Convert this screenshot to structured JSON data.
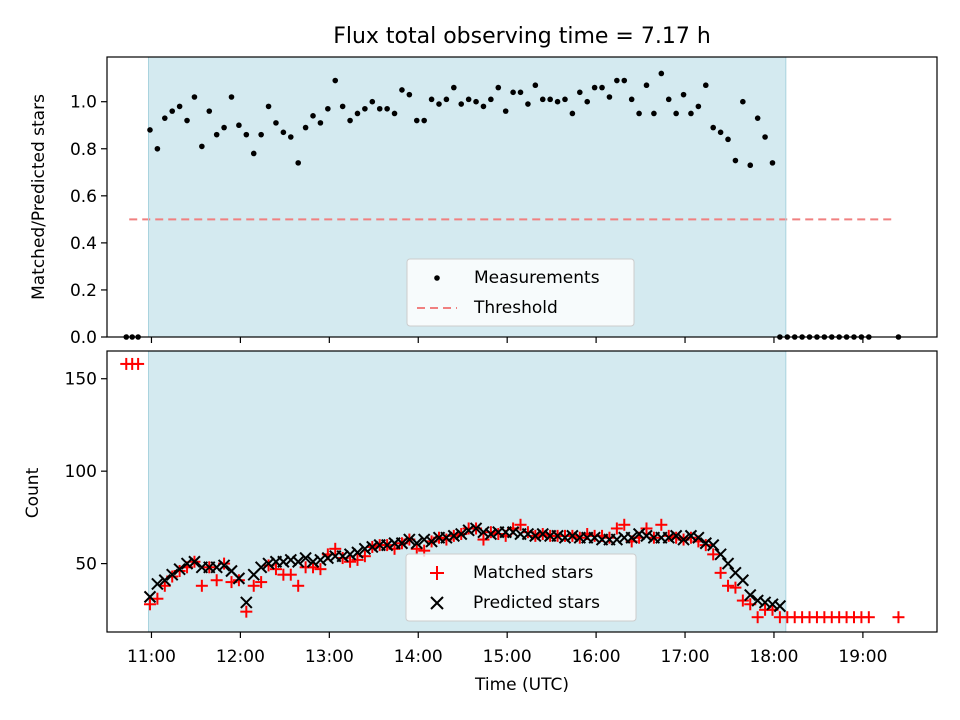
{
  "title": "Flux total observing time = 7.17 h",
  "xlabel": "Time (UTC)",
  "x_ticks": [
    "11:00",
    "12:00",
    "13:00",
    "14:00",
    "15:00",
    "16:00",
    "17:00",
    "18:00",
    "19:00"
  ],
  "colors": {
    "shade": "#d4eaf0",
    "matched": "#ff0000",
    "predicted": "#000000",
    "threshold": "#f08080"
  },
  "chart_data": [
    {
      "type": "scatter",
      "ylabel": "Matched/Predicted stars",
      "xlim": [
        "10:30",
        "19:50"
      ],
      "ylim": [
        0,
        1.19
      ],
      "y_ticks": [
        "0.0",
        "0.2",
        "0.4",
        "0.6",
        "0.8",
        "1.0"
      ],
      "shaded_span": [
        "10:58",
        "18:08"
      ],
      "legend": {
        "placement": "lower-center",
        "entries": [
          "Measurements",
          "Threshold"
        ]
      },
      "threshold": {
        "name": "Threshold",
        "value": 0.5,
        "x_range": [
          "10:45",
          "19:20"
        ]
      },
      "series": [
        {
          "name": "Measurements",
          "marker": "dot",
          "x": [
            "10:43",
            "10:47",
            "10:51",
            "10:59",
            "11:04",
            "11:09",
            "11:14",
            "11:19",
            "11:24",
            "11:29",
            "11:34",
            "11:39",
            "11:44",
            "11:49",
            "11:54",
            "11:59",
            "12:04",
            "12:09",
            "12:14",
            "12:19",
            "12:24",
            "12:29",
            "12:34",
            "12:39",
            "12:44",
            "12:49",
            "12:54",
            "12:59",
            "13:04",
            "13:09",
            "13:14",
            "13:19",
            "13:24",
            "13:29",
            "13:34",
            "13:39",
            "13:44",
            "13:49",
            "13:54",
            "13:59",
            "14:04",
            "14:09",
            "14:14",
            "14:19",
            "14:24",
            "14:29",
            "14:34",
            "14:39",
            "14:44",
            "14:49",
            "14:54",
            "14:59",
            "15:04",
            "15:09",
            "15:14",
            "15:19",
            "15:24",
            "15:29",
            "15:34",
            "15:39",
            "15:44",
            "15:49",
            "15:54",
            "15:59",
            "16:04",
            "16:09",
            "16:14",
            "16:19",
            "16:24",
            "16:29",
            "16:34",
            "16:39",
            "16:44",
            "16:49",
            "16:54",
            "16:59",
            "17:04",
            "17:09",
            "17:14",
            "17:19",
            "17:24",
            "17:29",
            "17:34",
            "17:39",
            "17:44",
            "17:49",
            "17:54",
            "17:59",
            "18:04",
            "18:09",
            "18:14",
            "18:19",
            "18:24",
            "18:29",
            "18:34",
            "18:39",
            "18:44",
            "18:49",
            "18:54",
            "18:59",
            "19:04",
            "19:24"
          ],
          "y": [
            0,
            0,
            0,
            0.88,
            0.8,
            0.93,
            0.96,
            0.98,
            0.92,
            1.02,
            0.81,
            0.96,
            0.86,
            0.89,
            1.02,
            0.9,
            0.86,
            0.78,
            0.86,
            0.98,
            0.91,
            0.87,
            0.85,
            0.74,
            0.89,
            0.94,
            0.91,
            0.97,
            1.09,
            0.98,
            0.92,
            0.95,
            0.97,
            1.0,
            0.97,
            0.97,
            0.95,
            1.05,
            1.03,
            0.92,
            0.92,
            1.01,
            0.99,
            1.01,
            1.06,
            0.99,
            1.01,
            1.0,
            0.98,
            1.01,
            1.06,
            0.96,
            1.04,
            1.04,
            0.99,
            1.07,
            1.01,
            1.01,
            1.0,
            1.01,
            0.95,
            1.04,
            1.0,
            1.06,
            1.06,
            1.02,
            1.09,
            1.09,
            1.01,
            0.95,
            1.07,
            0.95,
            1.12,
            1.01,
            0.95,
            1.03,
            0.95,
            0.98,
            1.07,
            0.89,
            0.87,
            0.84,
            0.75,
            1.0,
            0.73,
            0.93,
            0.85,
            0.74,
            0,
            0,
            0,
            0,
            0,
            0,
            0,
            0,
            0,
            0,
            0,
            0,
            0,
            0
          ]
        }
      ]
    },
    {
      "type": "scatter",
      "ylabel": "Count",
      "xlim": [
        "10:30",
        "19:50"
      ],
      "ylim": [
        13,
        165
      ],
      "y_ticks": [
        "50",
        "100",
        "150"
      ],
      "shaded_span": [
        "10:58",
        "18:08"
      ],
      "legend": {
        "placement": "lower-center",
        "entries": [
          "Matched stars",
          "Predicted stars"
        ]
      },
      "series": [
        {
          "name": "Matched stars",
          "marker": "plus",
          "x": [
            "10:43",
            "10:47",
            "10:51",
            "10:59",
            "11:04",
            "11:09",
            "11:14",
            "11:19",
            "11:24",
            "11:29",
            "11:34",
            "11:39",
            "11:44",
            "11:49",
            "11:54",
            "11:59",
            "12:04",
            "12:09",
            "12:14",
            "12:19",
            "12:24",
            "12:29",
            "12:34",
            "12:39",
            "12:44",
            "12:49",
            "12:54",
            "12:59",
            "13:04",
            "13:09",
            "13:14",
            "13:19",
            "13:24",
            "13:29",
            "13:34",
            "13:39",
            "13:44",
            "13:49",
            "13:54",
            "13:59",
            "14:04",
            "14:09",
            "14:14",
            "14:19",
            "14:24",
            "14:29",
            "14:34",
            "14:39",
            "14:44",
            "14:49",
            "14:54",
            "14:59",
            "15:04",
            "15:09",
            "15:14",
            "15:19",
            "15:24",
            "15:29",
            "15:34",
            "15:39",
            "15:44",
            "15:49",
            "15:54",
            "15:59",
            "16:04",
            "16:09",
            "16:14",
            "16:19",
            "16:24",
            "16:29",
            "16:34",
            "16:39",
            "16:44",
            "16:49",
            "16:54",
            "16:59",
            "17:04",
            "17:09",
            "17:14",
            "17:19",
            "17:24",
            "17:29",
            "17:34",
            "17:39",
            "17:44",
            "17:49",
            "17:54",
            "17:59",
            "18:04",
            "18:09",
            "18:14",
            "18:19",
            "18:24",
            "18:29",
            "18:34",
            "18:39",
            "18:44",
            "18:49",
            "18:54",
            "18:59",
            "19:04",
            "19:24"
          ],
          "y": [
            158,
            158,
            158,
            28,
            31,
            38,
            43,
            46,
            48,
            51,
            38,
            48,
            41,
            50,
            40,
            41,
            24,
            38,
            40,
            49,
            47,
            44,
            44,
            38,
            48,
            48,
            47,
            55,
            58,
            53,
            51,
            52,
            54,
            59,
            60,
            60,
            58,
            61,
            63,
            58,
            57,
            62,
            64,
            63,
            65,
            66,
            69,
            69,
            63,
            67,
            66,
            65,
            69,
            71,
            67,
            65,
            66,
            65,
            65,
            65,
            65,
            64,
            66,
            65,
            65,
            64,
            69,
            71,
            62,
            64,
            69,
            64,
            71,
            65,
            64,
            63,
            64,
            62,
            60,
            55,
            45,
            38,
            37,
            30,
            28,
            21,
            25,
            25,
            21,
            21,
            21,
            21,
            21,
            21,
            21,
            21,
            21,
            21,
            21,
            21,
            21,
            21
          ]
        },
        {
          "name": "Predicted stars",
          "marker": "x",
          "x": [
            "10:59",
            "11:04",
            "11:09",
            "11:14",
            "11:19",
            "11:24",
            "11:29",
            "11:34",
            "11:39",
            "11:44",
            "11:49",
            "11:54",
            "11:59",
            "12:04",
            "12:09",
            "12:14",
            "12:19",
            "12:24",
            "12:29",
            "12:34",
            "12:39",
            "12:44",
            "12:49",
            "12:54",
            "12:59",
            "13:04",
            "13:09",
            "13:14",
            "13:19",
            "13:24",
            "13:29",
            "13:34",
            "13:39",
            "13:44",
            "13:49",
            "13:54",
            "13:59",
            "14:04",
            "14:09",
            "14:14",
            "14:19",
            "14:24",
            "14:29",
            "14:34",
            "14:39",
            "14:44",
            "14:49",
            "14:54",
            "14:59",
            "15:04",
            "15:09",
            "15:14",
            "15:19",
            "15:24",
            "15:29",
            "15:34",
            "15:39",
            "15:44",
            "15:49",
            "15:54",
            "15:59",
            "16:04",
            "16:09",
            "16:14",
            "16:19",
            "16:24",
            "16:29",
            "16:34",
            "16:39",
            "16:44",
            "16:49",
            "16:54",
            "16:59",
            "17:04",
            "17:09",
            "17:14",
            "17:19",
            "17:24",
            "17:29",
            "17:34",
            "17:39",
            "17:44",
            "17:49",
            "17:54",
            "17:59",
            "18:04"
          ],
          "y": [
            32,
            39,
            41,
            44,
            47,
            50,
            51,
            48,
            48,
            48,
            49,
            46,
            42,
            29,
            44,
            48,
            50,
            51,
            51,
            52,
            51,
            53,
            51,
            52,
            53,
            54,
            54,
            55,
            56,
            58,
            59,
            60,
            60,
            61,
            61,
            63,
            61,
            63,
            62,
            64,
            64,
            65,
            66,
            68,
            69,
            67,
            66,
            67,
            67,
            67,
            66,
            66,
            65,
            66,
            65,
            65,
            64,
            65,
            64,
            64,
            64,
            63,
            63,
            63,
            64,
            64,
            66,
            65,
            64,
            64,
            64,
            65,
            63,
            65,
            64,
            61,
            60,
            55,
            50,
            45,
            41,
            33,
            30,
            29,
            28,
            27
          ]
        }
      ]
    }
  ]
}
